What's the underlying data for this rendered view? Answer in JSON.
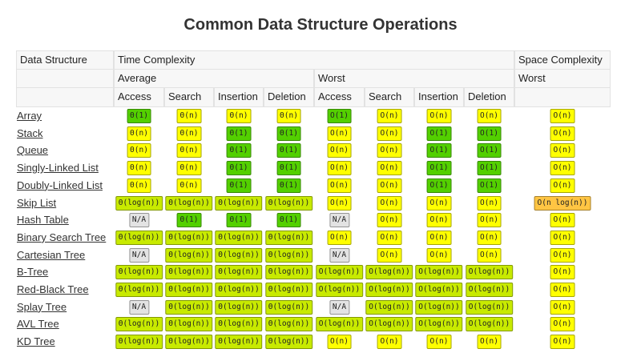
{
  "title": "Common Data Structure Operations",
  "header": {
    "data_structure": "Data Structure",
    "time": "Time Complexity",
    "space": "Space Complexity",
    "time_average": "Average",
    "time_worst": "Worst",
    "space_worst": "Worst",
    "columns": [
      "Access",
      "Search",
      "Insertion",
      "Deletion",
      "Access",
      "Search",
      "Insertion",
      "Deletion"
    ]
  },
  "rows": [
    {
      "name": "Array",
      "cells": [
        "Θ(1)",
        "Θ(n)",
        "Θ(n)",
        "Θ(n)",
        "O(1)",
        "O(n)",
        "O(n)",
        "O(n)",
        "O(n)"
      ],
      "colors": [
        "#53d000",
        "#ffff00",
        "#ffff00",
        "#ffff00",
        "#53d000",
        "#ffff00",
        "#ffff00",
        "#ffff00",
        "#ffff00"
      ]
    },
    {
      "name": "Stack",
      "cells": [
        "Θ(n)",
        "Θ(n)",
        "Θ(1)",
        "Θ(1)",
        "O(n)",
        "O(n)",
        "O(1)",
        "O(1)",
        "O(n)"
      ],
      "colors": [
        "#ffff00",
        "#ffff00",
        "#53d000",
        "#53d000",
        "#ffff00",
        "#ffff00",
        "#53d000",
        "#53d000",
        "#ffff00"
      ]
    },
    {
      "name": "Queue",
      "cells": [
        "Θ(n)",
        "Θ(n)",
        "Θ(1)",
        "Θ(1)",
        "O(n)",
        "O(n)",
        "O(1)",
        "O(1)",
        "O(n)"
      ],
      "colors": [
        "#ffff00",
        "#ffff00",
        "#53d000",
        "#53d000",
        "#ffff00",
        "#ffff00",
        "#53d000",
        "#53d000",
        "#ffff00"
      ]
    },
    {
      "name": "Singly-Linked List",
      "cells": [
        "Θ(n)",
        "Θ(n)",
        "Θ(1)",
        "Θ(1)",
        "O(n)",
        "O(n)",
        "O(1)",
        "O(1)",
        "O(n)"
      ],
      "colors": [
        "#ffff00",
        "#ffff00",
        "#53d000",
        "#53d000",
        "#ffff00",
        "#ffff00",
        "#53d000",
        "#53d000",
        "#ffff00"
      ]
    },
    {
      "name": "Doubly-Linked List",
      "cells": [
        "Θ(n)",
        "Θ(n)",
        "Θ(1)",
        "Θ(1)",
        "O(n)",
        "O(n)",
        "O(1)",
        "O(1)",
        "O(n)"
      ],
      "colors": [
        "#ffff00",
        "#ffff00",
        "#53d000",
        "#53d000",
        "#ffff00",
        "#ffff00",
        "#53d000",
        "#53d000",
        "#ffff00"
      ]
    },
    {
      "name": "Skip List",
      "cells": [
        "Θ(log(n))",
        "Θ(log(n))",
        "Θ(log(n))",
        "Θ(log(n))",
        "O(n)",
        "O(n)",
        "O(n)",
        "O(n)",
        "O(n log(n))"
      ],
      "colors": [
        "#c8ea00",
        "#c8ea00",
        "#c8ea00",
        "#c8ea00",
        "#ffff00",
        "#ffff00",
        "#ffff00",
        "#ffff00",
        "#ffc543"
      ]
    },
    {
      "name": "Hash Table",
      "cells": [
        "N/A",
        "Θ(1)",
        "Θ(1)",
        "Θ(1)",
        "N/A",
        "O(n)",
        "O(n)",
        "O(n)",
        "O(n)"
      ],
      "colors": [
        "#e3e3e3",
        "#53d000",
        "#53d000",
        "#53d000",
        "#e3e3e3",
        "#ffff00",
        "#ffff00",
        "#ffff00",
        "#ffff00"
      ]
    },
    {
      "name": "Binary Search Tree",
      "cells": [
        "Θ(log(n))",
        "Θ(log(n))",
        "Θ(log(n))",
        "Θ(log(n))",
        "O(n)",
        "O(n)",
        "O(n)",
        "O(n)",
        "O(n)"
      ],
      "colors": [
        "#c8ea00",
        "#c8ea00",
        "#c8ea00",
        "#c8ea00",
        "#ffff00",
        "#ffff00",
        "#ffff00",
        "#ffff00",
        "#ffff00"
      ]
    },
    {
      "name": "Cartesian Tree",
      "cells": [
        "N/A",
        "Θ(log(n))",
        "Θ(log(n))",
        "Θ(log(n))",
        "N/A",
        "O(n)",
        "O(n)",
        "O(n)",
        "O(n)"
      ],
      "colors": [
        "#e3e3e3",
        "#c8ea00",
        "#c8ea00",
        "#c8ea00",
        "#e3e3e3",
        "#ffff00",
        "#ffff00",
        "#ffff00",
        "#ffff00"
      ]
    },
    {
      "name": "B-Tree",
      "cells": [
        "Θ(log(n))",
        "Θ(log(n))",
        "Θ(log(n))",
        "Θ(log(n))",
        "O(log(n))",
        "O(log(n))",
        "O(log(n))",
        "O(log(n))",
        "O(n)"
      ],
      "colors": [
        "#c8ea00",
        "#c8ea00",
        "#c8ea00",
        "#c8ea00",
        "#c8ea00",
        "#c8ea00",
        "#c8ea00",
        "#c8ea00",
        "#ffff00"
      ]
    },
    {
      "name": "Red-Black Tree",
      "cells": [
        "Θ(log(n))",
        "Θ(log(n))",
        "Θ(log(n))",
        "Θ(log(n))",
        "O(log(n))",
        "O(log(n))",
        "O(log(n))",
        "O(log(n))",
        "O(n)"
      ],
      "colors": [
        "#c8ea00",
        "#c8ea00",
        "#c8ea00",
        "#c8ea00",
        "#c8ea00",
        "#c8ea00",
        "#c8ea00",
        "#c8ea00",
        "#ffff00"
      ]
    },
    {
      "name": "Splay Tree",
      "cells": [
        "N/A",
        "Θ(log(n))",
        "Θ(log(n))",
        "Θ(log(n))",
        "N/A",
        "O(log(n))",
        "O(log(n))",
        "O(log(n))",
        "O(n)"
      ],
      "colors": [
        "#e3e3e3",
        "#c8ea00",
        "#c8ea00",
        "#c8ea00",
        "#e3e3e3",
        "#c8ea00",
        "#c8ea00",
        "#c8ea00",
        "#ffff00"
      ]
    },
    {
      "name": "AVL Tree",
      "cells": [
        "Θ(log(n))",
        "Θ(log(n))",
        "Θ(log(n))",
        "Θ(log(n))",
        "O(log(n))",
        "O(log(n))",
        "O(log(n))",
        "O(log(n))",
        "O(n)"
      ],
      "colors": [
        "#c8ea00",
        "#c8ea00",
        "#c8ea00",
        "#c8ea00",
        "#c8ea00",
        "#c8ea00",
        "#c8ea00",
        "#c8ea00",
        "#ffff00"
      ]
    },
    {
      "name": "KD Tree",
      "cells": [
        "Θ(log(n))",
        "Θ(log(n))",
        "Θ(log(n))",
        "Θ(log(n))",
        "O(n)",
        "O(n)",
        "O(n)",
        "O(n)",
        "O(n)"
      ],
      "colors": [
        "#c8ea00",
        "#c8ea00",
        "#c8ea00",
        "#c8ea00",
        "#ffff00",
        "#ffff00",
        "#ffff00",
        "#ffff00",
        "#ffff00"
      ]
    }
  ]
}
